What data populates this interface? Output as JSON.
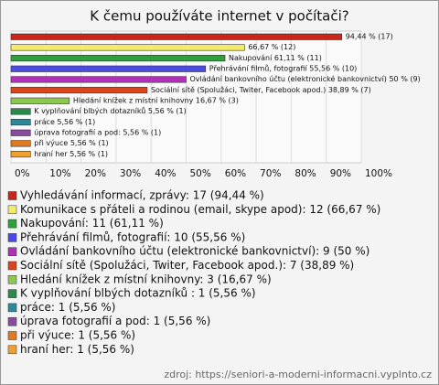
{
  "chart_data": {
    "type": "bar",
    "orientation": "horizontal",
    "title": "K čemu používáte internet v počítači?",
    "categories": [
      "Vyhledávání informací, zprávy: 17 (94,44 %)",
      "Komunikace s přáteli a rodinou (email, skype apod): 12 (66,67 %)",
      "Nakupování: 11 (61,11 %)",
      "Přehrávání filmů, fotografií: 10 (55,56 %)",
      "Ovládání bankovního účtu (elektronické bankovnictví): 9 (50 %)",
      "Sociální sítě (Spolužáci, Twiter, Facebook apod.): 7 (38,89 %)",
      "Hledání knížek z místní knihovny: 3 (16,67 %)",
      "K vyplňování blbých dotazníků : 1 (5,56 %)",
      "práce: 1 (5,56 %)",
      "úprava fotografií a pod: 1 (5,56 %)",
      "při výuce: 1 (5,56 %)",
      "hraní her: 1 (5,56 %)"
    ],
    "values": [
      94.44,
      66.67,
      61.11,
      55.56,
      50,
      38.89,
      16.67,
      5.56,
      5.56,
      5.56,
      5.56,
      5.56
    ],
    "value_labels": [
      "94,44 % (17)",
      "66,67 % (12)",
      "Nakupování 61,11 % (11)",
      "Přehrávání filmů, fotografií 55,56 % (10)",
      "Ovládání bankovního účtu (elektronické bankovnictví) 50 % (9)",
      "Sociální sítě (Spolužáci, Twiter, Facebook apod.) 38,89 % (7)",
      "Hledání knížek z místní knihovny 16,67 % (3)",
      "K vyplňování blbých dotazníků  5,56 % (1)",
      "práce 5,56 % (1)",
      "úprava fotografií a pod: 5,56 % (1)",
      "při výuce 5,56 % (1)",
      "hraní her 5,56 % (1)"
    ],
    "colors": [
      "#c8281c",
      "#f2ec6a",
      "#2ea23a",
      "#4a4ae6",
      "#b030b8",
      "#d8461e",
      "#8cc850",
      "#2a8a4a",
      "#2a8a9a",
      "#8a4aa0",
      "#e07a20",
      "#f0a030"
    ],
    "xlim": [
      0,
      100
    ],
    "xticks": [
      {
        "value": 0,
        "label": "0%"
      },
      {
        "value": 10,
        "label": "10%"
      },
      {
        "value": 20,
        "label": "20%"
      },
      {
        "value": 30,
        "label": "30%"
      },
      {
        "value": 40,
        "label": "40%"
      },
      {
        "value": 50,
        "label": "50%"
      },
      {
        "value": 60,
        "label": "60%"
      },
      {
        "value": 70,
        "label": "70%"
      },
      {
        "value": 80,
        "label": "80%"
      },
      {
        "value": 90,
        "label": "90%"
      },
      {
        "value": 100,
        "label": "100%"
      }
    ],
    "grid": true,
    "source": "zdroj: https://seniori-a-moderni-informacni.vyplnto.cz"
  }
}
